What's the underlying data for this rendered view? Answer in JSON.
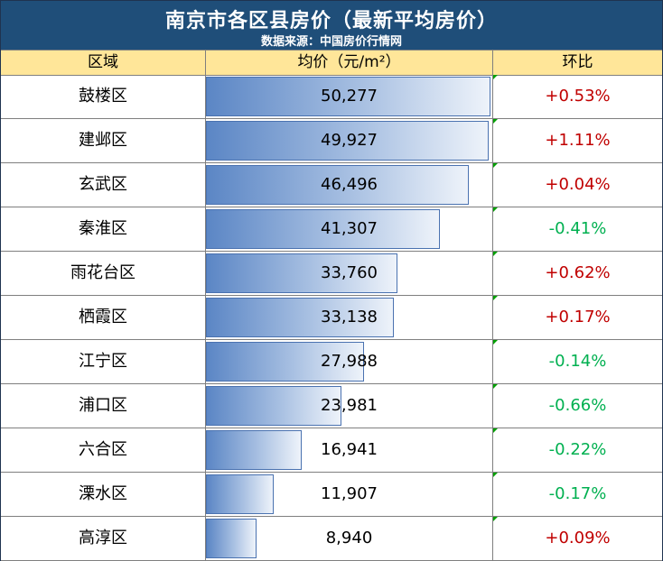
{
  "title": "南京市各区县房价（最新平均房价）",
  "subtitle": "数据来源：中国房价行情网",
  "headers": {
    "region": "区域",
    "price": "均价（元/m²）",
    "change": "环比"
  },
  "colors": {
    "title_bg": "#1f4e79",
    "header_bg": "#ffe699",
    "bar_start": "#5b86c5",
    "bar_end": "#eef3fa",
    "positive": "#c00000",
    "negative": "#00b050"
  },
  "chart_data": {
    "type": "table",
    "title": "南京市各区县房价（最新平均房价）",
    "subtitle": "数据来源：中国房价行情网",
    "columns": [
      "区域",
      "均价（元/m²）",
      "环比"
    ],
    "bar_max": 50277,
    "rows": [
      {
        "region": "鼓楼区",
        "price": 50277,
        "price_label": "50,277",
        "change": "+0.53%"
      },
      {
        "region": "建邺区",
        "price": 49927,
        "price_label": "49,927",
        "change": "+1.11%"
      },
      {
        "region": "玄武区",
        "price": 46496,
        "price_label": "46,496",
        "change": "+0.04%"
      },
      {
        "region": "秦淮区",
        "price": 41307,
        "price_label": "41,307",
        "change": "-0.41%"
      },
      {
        "region": "雨花台区",
        "price": 33760,
        "price_label": "33,760",
        "change": "+0.62%"
      },
      {
        "region": "栖霞区",
        "price": 33138,
        "price_label": "33,138",
        "change": "+0.17%"
      },
      {
        "region": "江宁区",
        "price": 27988,
        "price_label": "27,988",
        "change": "-0.14%"
      },
      {
        "region": "浦口区",
        "price": 23981,
        "price_label": "23,981",
        "change": "-0.66%"
      },
      {
        "region": "六合区",
        "price": 16941,
        "price_label": "16,941",
        "change": "-0.22%"
      },
      {
        "region": "溧水区",
        "price": 11907,
        "price_label": "11,907",
        "change": "-0.17%"
      },
      {
        "region": "高淳区",
        "price": 8940,
        "price_label": "8,940",
        "change": "+0.09%"
      }
    ]
  }
}
